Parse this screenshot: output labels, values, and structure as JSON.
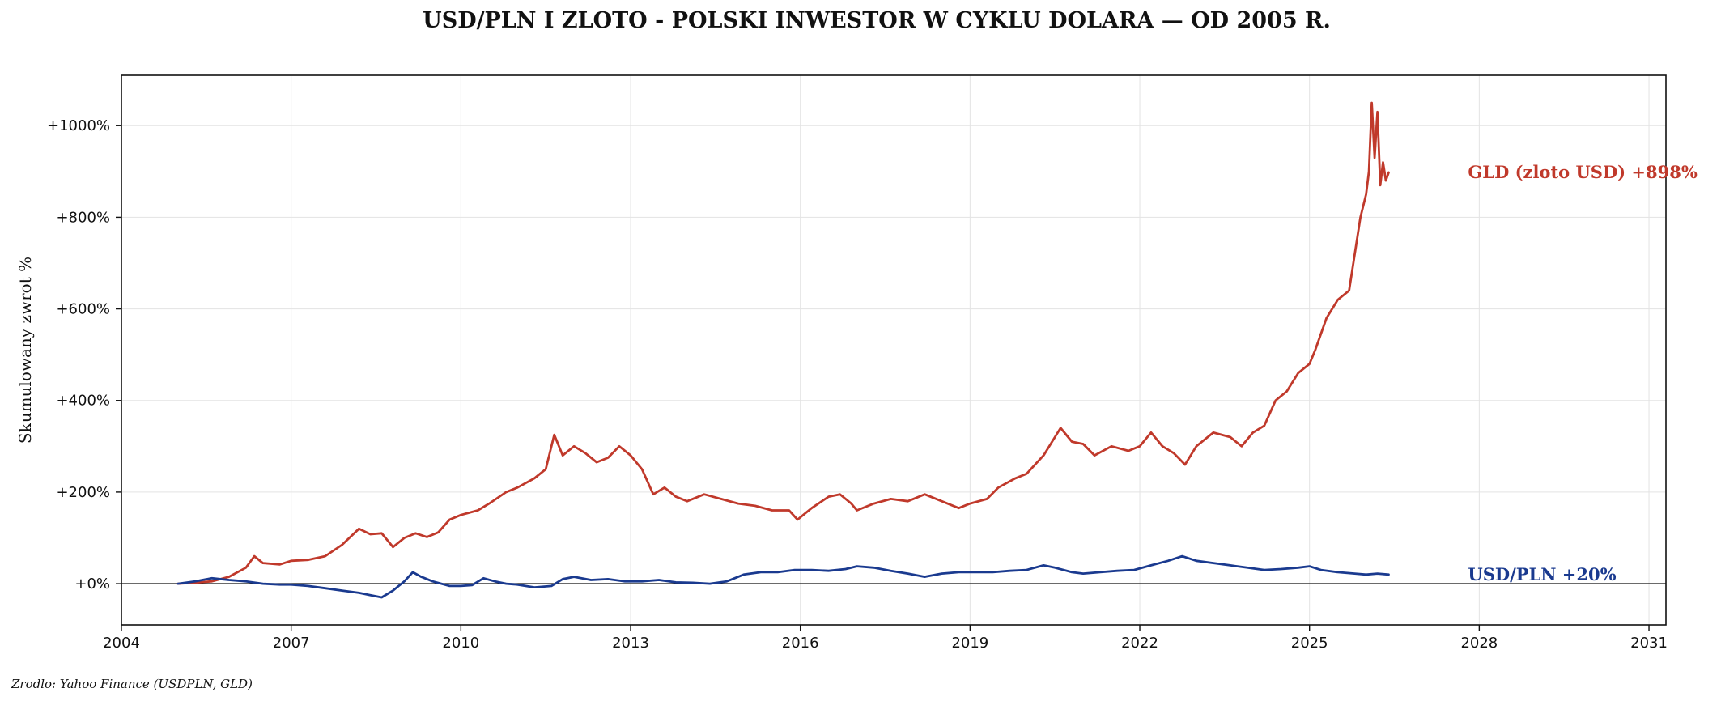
{
  "chart_data": {
    "type": "line",
    "title": "USD/PLN I ZLOTO - POLSKI INWESTOR W CYKLU DOLARA — OD 2005 R.",
    "ylabel": "Skumulowany zwrot %",
    "xlabel": "",
    "source": "Zrodlo: Yahoo Finance (USDPLN, GLD)",
    "xlim": [
      2004.0,
      2031.3
    ],
    "ylim": [
      -90,
      1110
    ],
    "grid": true,
    "x_ticks": [
      2004,
      2007,
      2010,
      2013,
      2016,
      2019,
      2022,
      2025,
      2028,
      2031
    ],
    "x_tick_labels": [
      "2004",
      "2007",
      "2010",
      "2013",
      "2016",
      "2019",
      "2022",
      "2025",
      "2028",
      "2031"
    ],
    "y_ticks": [
      0,
      200,
      400,
      600,
      800,
      1000
    ],
    "y_tick_labels": [
      "+0%",
      "+200%",
      "+400%",
      "+600%",
      "+800%",
      "+1000%"
    ],
    "series": [
      {
        "name": "GLD (zloto USD)",
        "end_label": "GLD (zloto USD)  +898%",
        "color": "#c0392b",
        "points": [
          [
            2005.0,
            0
          ],
          [
            2005.3,
            2
          ],
          [
            2005.6,
            5
          ],
          [
            2005.9,
            15
          ],
          [
            2006.2,
            35
          ],
          [
            2006.35,
            60
          ],
          [
            2006.5,
            45
          ],
          [
            2006.8,
            42
          ],
          [
            2007.0,
            50
          ],
          [
            2007.3,
            52
          ],
          [
            2007.6,
            60
          ],
          [
            2007.9,
            85
          ],
          [
            2008.2,
            120
          ],
          [
            2008.4,
            108
          ],
          [
            2008.6,
            110
          ],
          [
            2008.8,
            80
          ],
          [
            2009.0,
            100
          ],
          [
            2009.2,
            110
          ],
          [
            2009.4,
            102
          ],
          [
            2009.6,
            112
          ],
          [
            2009.8,
            140
          ],
          [
            2010.0,
            150
          ],
          [
            2010.3,
            160
          ],
          [
            2010.5,
            175
          ],
          [
            2010.8,
            200
          ],
          [
            2011.0,
            210
          ],
          [
            2011.3,
            230
          ],
          [
            2011.5,
            250
          ],
          [
            2011.65,
            325
          ],
          [
            2011.8,
            280
          ],
          [
            2012.0,
            300
          ],
          [
            2012.2,
            285
          ],
          [
            2012.4,
            265
          ],
          [
            2012.6,
            275
          ],
          [
            2012.8,
            300
          ],
          [
            2013.0,
            280
          ],
          [
            2013.2,
            250
          ],
          [
            2013.4,
            195
          ],
          [
            2013.6,
            210
          ],
          [
            2013.8,
            190
          ],
          [
            2014.0,
            180
          ],
          [
            2014.3,
            195
          ],
          [
            2014.6,
            185
          ],
          [
            2014.9,
            175
          ],
          [
            2015.2,
            170
          ],
          [
            2015.5,
            160
          ],
          [
            2015.8,
            160
          ],
          [
            2015.95,
            140
          ],
          [
            2016.2,
            165
          ],
          [
            2016.5,
            190
          ],
          [
            2016.7,
            195
          ],
          [
            2016.9,
            175
          ],
          [
            2017.0,
            160
          ],
          [
            2017.3,
            175
          ],
          [
            2017.6,
            185
          ],
          [
            2017.9,
            180
          ],
          [
            2018.2,
            195
          ],
          [
            2018.5,
            180
          ],
          [
            2018.8,
            165
          ],
          [
            2019.0,
            175
          ],
          [
            2019.3,
            185
          ],
          [
            2019.5,
            210
          ],
          [
            2019.8,
            230
          ],
          [
            2020.0,
            240
          ],
          [
            2020.3,
            280
          ],
          [
            2020.6,
            340
          ],
          [
            2020.8,
            310
          ],
          [
            2021.0,
            305
          ],
          [
            2021.2,
            280
          ],
          [
            2021.5,
            300
          ],
          [
            2021.8,
            290
          ],
          [
            2022.0,
            300
          ],
          [
            2022.2,
            330
          ],
          [
            2022.4,
            300
          ],
          [
            2022.6,
            285
          ],
          [
            2022.8,
            260
          ],
          [
            2023.0,
            300
          ],
          [
            2023.3,
            330
          ],
          [
            2023.6,
            320
          ],
          [
            2023.8,
            300
          ],
          [
            2024.0,
            330
          ],
          [
            2024.2,
            345
          ],
          [
            2024.4,
            400
          ],
          [
            2024.6,
            420
          ],
          [
            2024.8,
            460
          ],
          [
            2025.0,
            480
          ],
          [
            2025.1,
            510
          ],
          [
            2025.3,
            580
          ],
          [
            2025.5,
            620
          ],
          [
            2025.7,
            640
          ],
          [
            2025.8,
            720
          ],
          [
            2025.9,
            800
          ],
          [
            2026.0,
            850
          ],
          [
            2026.05,
            900
          ],
          [
            2026.1,
            1050
          ],
          [
            2026.15,
            930
          ],
          [
            2026.2,
            1030
          ],
          [
            2026.25,
            870
          ],
          [
            2026.3,
            920
          ],
          [
            2026.35,
            880
          ],
          [
            2026.4,
            898
          ]
        ]
      },
      {
        "name": "USD/PLN",
        "end_label": "USD/PLN  +20%",
        "color": "#1a3a8f",
        "points": [
          [
            2005.0,
            0
          ],
          [
            2005.3,
            5
          ],
          [
            2005.6,
            12
          ],
          [
            2005.9,
            8
          ],
          [
            2006.2,
            5
          ],
          [
            2006.5,
            0
          ],
          [
            2006.8,
            -2
          ],
          [
            2007.0,
            -2
          ],
          [
            2007.3,
            -5
          ],
          [
            2007.6,
            -10
          ],
          [
            2007.9,
            -15
          ],
          [
            2008.2,
            -20
          ],
          [
            2008.4,
            -25
          ],
          [
            2008.6,
            -30
          ],
          [
            2008.8,
            -15
          ],
          [
            2009.0,
            5
          ],
          [
            2009.15,
            25
          ],
          [
            2009.3,
            15
          ],
          [
            2009.5,
            5
          ],
          [
            2009.8,
            -5
          ],
          [
            2010.0,
            -5
          ],
          [
            2010.2,
            -3
          ],
          [
            2010.4,
            12
          ],
          [
            2010.6,
            5
          ],
          [
            2010.8,
            0
          ],
          [
            2011.0,
            -2
          ],
          [
            2011.3,
            -8
          ],
          [
            2011.6,
            -5
          ],
          [
            2011.8,
            10
          ],
          [
            2012.0,
            15
          ],
          [
            2012.3,
            8
          ],
          [
            2012.6,
            10
          ],
          [
            2012.9,
            5
          ],
          [
            2013.2,
            5
          ],
          [
            2013.5,
            8
          ],
          [
            2013.8,
            3
          ],
          [
            2014.1,
            2
          ],
          [
            2014.4,
            0
          ],
          [
            2014.7,
            5
          ],
          [
            2015.0,
            20
          ],
          [
            2015.3,
            25
          ],
          [
            2015.6,
            25
          ],
          [
            2015.9,
            30
          ],
          [
            2016.2,
            30
          ],
          [
            2016.5,
            28
          ],
          [
            2016.8,
            32
          ],
          [
            2017.0,
            38
          ],
          [
            2017.3,
            35
          ],
          [
            2017.6,
            28
          ],
          [
            2017.9,
            22
          ],
          [
            2018.2,
            15
          ],
          [
            2018.5,
            22
          ],
          [
            2018.8,
            25
          ],
          [
            2019.1,
            25
          ],
          [
            2019.4,
            25
          ],
          [
            2019.7,
            28
          ],
          [
            2020.0,
            30
          ],
          [
            2020.3,
            40
          ],
          [
            2020.5,
            35
          ],
          [
            2020.8,
            25
          ],
          [
            2021.0,
            22
          ],
          [
            2021.3,
            25
          ],
          [
            2021.6,
            28
          ],
          [
            2021.9,
            30
          ],
          [
            2022.2,
            40
          ],
          [
            2022.5,
            50
          ],
          [
            2022.75,
            60
          ],
          [
            2023.0,
            50
          ],
          [
            2023.3,
            45
          ],
          [
            2023.6,
            40
          ],
          [
            2023.9,
            35
          ],
          [
            2024.2,
            30
          ],
          [
            2024.5,
            32
          ],
          [
            2024.8,
            35
          ],
          [
            2025.0,
            38
          ],
          [
            2025.2,
            30
          ],
          [
            2025.5,
            25
          ],
          [
            2025.8,
            22
          ],
          [
            2026.0,
            20
          ],
          [
            2026.2,
            22
          ],
          [
            2026.4,
            20
          ]
        ]
      }
    ]
  }
}
